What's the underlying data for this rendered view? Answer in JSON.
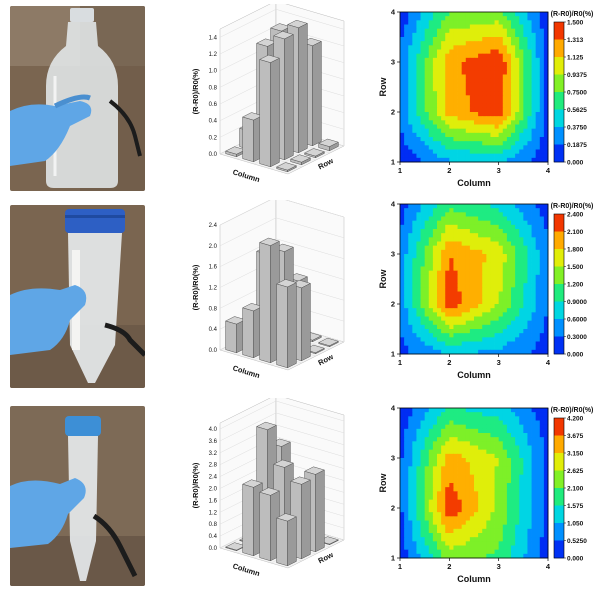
{
  "rows": [
    {
      "photo": {
        "object": "plastic-bottle",
        "glove_color": "#5fa6e6"
      },
      "bar3d": {
        "zlabel": "(R-R0)/R0(%)",
        "xlabel": "Column",
        "ylabel": "Row",
        "zticks": [
          "0.0",
          "0.2",
          "0.4",
          "0.6",
          "0.8",
          "1.0",
          "1.2",
          "1.4"
        ],
        "zmax": 1.5
      },
      "contour": {
        "title": "(R-R0)/R0(%)",
        "xlabel": "Column",
        "ylabel": "Row",
        "xticks": [
          "1",
          "2",
          "3",
          "4"
        ],
        "yticks": [
          "1",
          "2",
          "3",
          "4"
        ],
        "colorbar_ticks": [
          "1.500",
          "1.313",
          "1.125",
          "0.9375",
          "0.7500",
          "0.5625",
          "0.3750",
          "0.1875",
          "0.000"
        ],
        "vmax": 1.5
      }
    },
    {
      "photo": {
        "object": "centrifuge-tube-50ml",
        "cap_color": "#2d5fc4",
        "glove_color": "#5fa6e6"
      },
      "bar3d": {
        "zlabel": "(R-R0)/R0(%)",
        "xlabel": "Column",
        "ylabel": "Row",
        "zticks": [
          "0.0",
          "0.4",
          "0.8",
          "1.2",
          "1.6",
          "2.0",
          "2.4"
        ],
        "zmax": 2.4
      },
      "contour": {
        "title": "(R-R0)/R0(%)",
        "xlabel": "Column",
        "ylabel": "Row",
        "xticks": [
          "1",
          "2",
          "3",
          "4"
        ],
        "yticks": [
          "1",
          "2",
          "3",
          "4"
        ],
        "colorbar_ticks": [
          "2.400",
          "2.100",
          "1.800",
          "1.500",
          "1.200",
          "0.9000",
          "0.6000",
          "0.3000",
          "0.000"
        ],
        "vmax": 2.4
      }
    },
    {
      "photo": {
        "object": "centrifuge-tube-15ml",
        "cap_color": "#3d8fd6",
        "glove_color": "#5fa6e6"
      },
      "bar3d": {
        "zlabel": "(R-R0)/R0(%)",
        "xlabel": "Column",
        "ylabel": "Row",
        "zticks": [
          "0.0",
          "0.4",
          "0.8",
          "1.2",
          "1.6",
          "2.0",
          "2.4",
          "2.8",
          "3.2",
          "3.6",
          "4.0"
        ],
        "zmax": 4.2
      },
      "contour": {
        "title": "(R-R0)/R0(%)",
        "xlabel": "Column",
        "ylabel": "Row",
        "xticks": [
          "1",
          "2",
          "3",
          "4"
        ],
        "yticks": [
          "1",
          "2",
          "3",
          "4"
        ],
        "colorbar_ticks": [
          "4.200",
          "3.675",
          "3.150",
          "2.625",
          "2.100",
          "1.575",
          "1.050",
          "0.5250",
          "0.000"
        ],
        "vmax": 4.2
      }
    }
  ],
  "chart_data": [
    {
      "type": "bar3d",
      "zlabel": "(R-R0)/R0(%)",
      "xlabel": "Column",
      "ylabel": "Row",
      "columns": [
        1,
        2,
        3,
        4
      ],
      "rows": [
        1,
        2,
        3,
        4
      ],
      "values": [
        [
          0.03,
          0.5,
          1.25,
          0.02
        ],
        [
          0.22,
          1.3,
          1.45,
          0.03
        ],
        [
          0.02,
          1.4,
          1.5,
          0.02
        ],
        [
          0.02,
          0.03,
          1.2,
          0.05
        ]
      ]
    },
    {
      "type": "heatmap",
      "title": "(R-R0)/R0(%)",
      "xlabel": "Column",
      "ylabel": "Row",
      "xlim": [
        1,
        4
      ],
      "ylim": [
        1,
        4
      ],
      "grid": [
        [
          0.05,
          0.35,
          0.4,
          0.05
        ],
        [
          0.25,
          1.2,
          1.45,
          0.1
        ],
        [
          0.25,
          1.25,
          1.5,
          0.1
        ],
        [
          0.05,
          0.75,
          0.8,
          0.05
        ]
      ],
      "colorbar": [
        0,
        1.5
      ]
    },
    {
      "type": "bar3d",
      "zlabel": "(R-R0)/R0(%)",
      "xlabel": "Column",
      "ylabel": "Row",
      "columns": [
        1,
        2,
        3,
        4
      ],
      "rows": [
        1,
        2,
        3,
        4
      ],
      "values": [
        [
          0.55,
          0.9,
          2.25,
          1.55
        ],
        [
          0.02,
          1.85,
          2.0,
          1.4
        ],
        [
          0.02,
          0.75,
          1.3,
          0.02
        ],
        [
          0.02,
          0.05,
          0.03,
          0.02
        ]
      ]
    },
    {
      "type": "heatmap",
      "title": "(R-R0)/R0(%)",
      "xlabel": "Column",
      "ylabel": "Row",
      "xlim": [
        1,
        4
      ],
      "ylim": [
        1,
        4
      ],
      "grid": [
        [
          0.2,
          0.6,
          0.5,
          0.15
        ],
        [
          0.4,
          2.3,
          1.5,
          0.3
        ],
        [
          0.4,
          2.1,
          1.7,
          0.35
        ],
        [
          0.15,
          1.1,
          0.8,
          0.15
        ]
      ],
      "colorbar": [
        0,
        2.4
      ]
    },
    {
      "type": "bar3d",
      "zlabel": "(R-R0)/R0(%)",
      "xlabel": "Column",
      "ylabel": "Row",
      "columns": [
        1,
        2,
        3,
        4
      ],
      "rows": [
        1,
        2,
        3,
        4
      ],
      "values": [
        [
          0.02,
          2.3,
          2.2,
          1.5
        ],
        [
          0.02,
          4.0,
          2.9,
          2.5
        ],
        [
          0.02,
          3.2,
          2.0,
          2.6
        ],
        [
          0.02,
          0.03,
          0.02,
          0.02
        ]
      ]
    },
    {
      "type": "heatmap",
      "title": "(R-R0)/R0(%)",
      "xlabel": "Column",
      "ylabel": "Row",
      "xlim": [
        1,
        4
      ],
      "ylim": [
        1,
        4
      ],
      "grid": [
        [
          0.2,
          2.3,
          2.0,
          0.2
        ],
        [
          0.4,
          4.1,
          2.5,
          0.4
        ],
        [
          0.4,
          3.4,
          2.6,
          0.4
        ],
        [
          0.15,
          1.6,
          1.3,
          0.15
        ]
      ],
      "colorbar": [
        0,
        4.2
      ]
    }
  ]
}
